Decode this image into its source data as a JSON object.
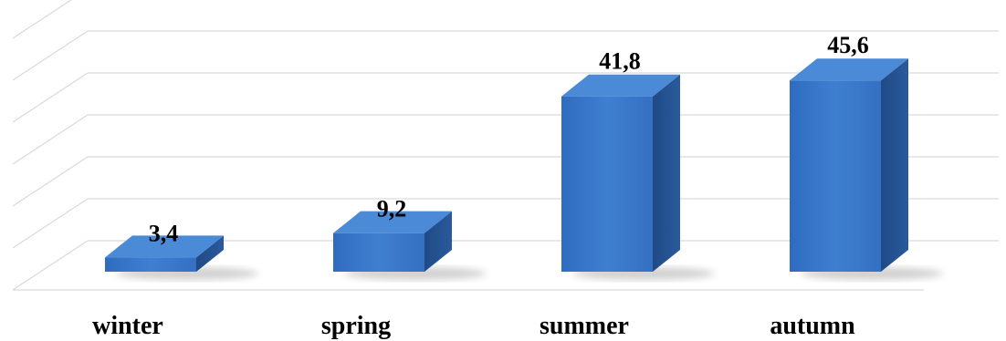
{
  "chart_data": {
    "type": "bar",
    "style": "3d-column",
    "categories": [
      "winter",
      "spring",
      "summer",
      "autumn"
    ],
    "values": [
      3.4,
      9.2,
      41.8,
      45.6
    ],
    "value_labels": [
      "3,4",
      "9,2",
      "41,8",
      "45,6"
    ],
    "title": "",
    "xlabel": "",
    "ylabel": "",
    "ylim": [
      0,
      60
    ],
    "grid": true,
    "legend": "none",
    "colors": {
      "bar_front": "#3a78c8",
      "bar_top": "#4a8ad6",
      "bar_side": "#23508f",
      "grid": "#d9d9d9"
    }
  }
}
